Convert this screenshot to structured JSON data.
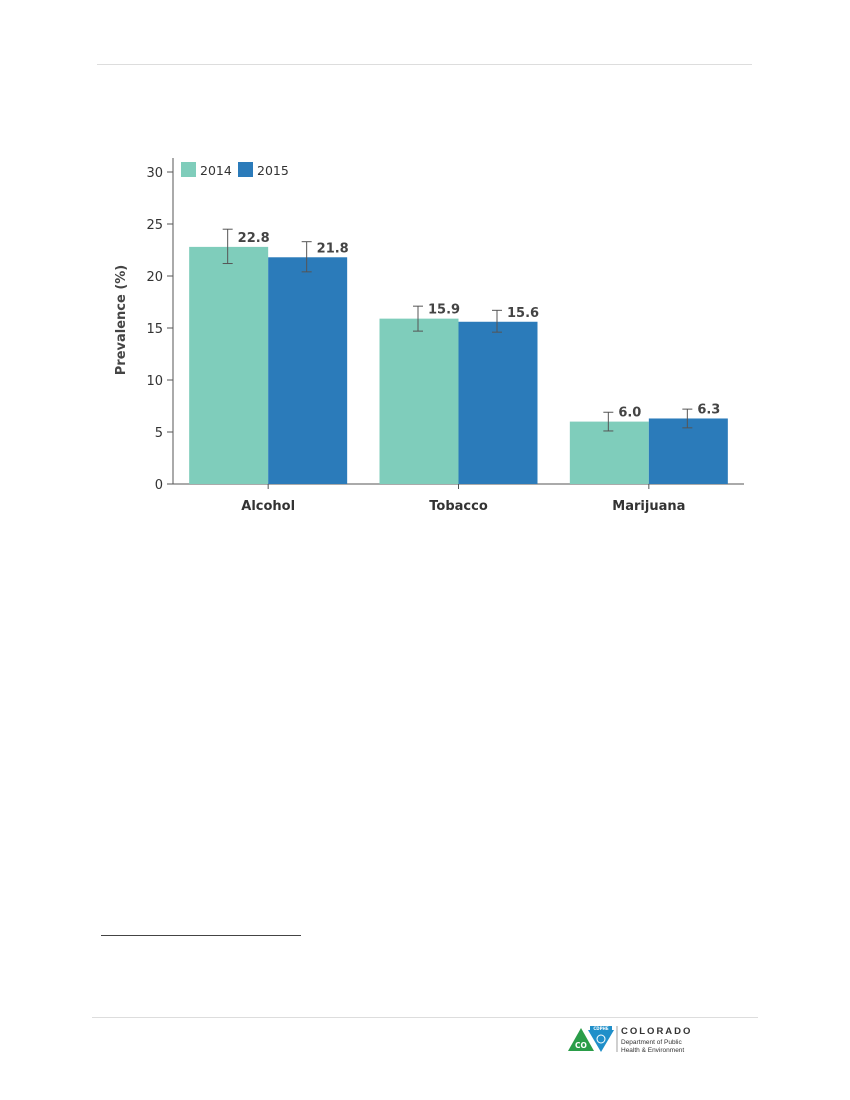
{
  "chart_data": {
    "type": "bar",
    "title": "",
    "xlabel": "",
    "ylabel": "Prevalence (%)",
    "ylim": [
      0,
      32
    ],
    "yticks": [
      0,
      5,
      10,
      15,
      20,
      25,
      30
    ],
    "categories": [
      "Alcohol",
      "Tobacco",
      "Marijuana"
    ],
    "series": [
      {
        "name": "2014",
        "color": "#7fcdbb",
        "values": [
          22.8,
          15.9,
          6.0
        ],
        "labels": [
          "22.8",
          "15.9",
          "6.0"
        ],
        "ci": [
          [
            21.2,
            24.5
          ],
          [
            14.7,
            17.1
          ],
          [
            5.1,
            6.9
          ]
        ]
      },
      {
        "name": "2015",
        "color": "#2b7bba",
        "values": [
          21.8,
          15.6,
          6.3
        ],
        "labels": [
          "21.8",
          "15.6",
          "6.3"
        ],
        "ci": [
          [
            20.4,
            23.3
          ],
          [
            14.6,
            16.7
          ],
          [
            5.4,
            7.2
          ]
        ]
      }
    ],
    "legend_position": "top-left",
    "grid": false,
    "error_bars": true
  },
  "footer": {
    "logo_badge_text": "CDPHE",
    "logo_state_abbr": "CO",
    "logo_name": "COLORADO",
    "logo_dept_line1": "Department of Public",
    "logo_dept_line2": "Health & Environment"
  }
}
